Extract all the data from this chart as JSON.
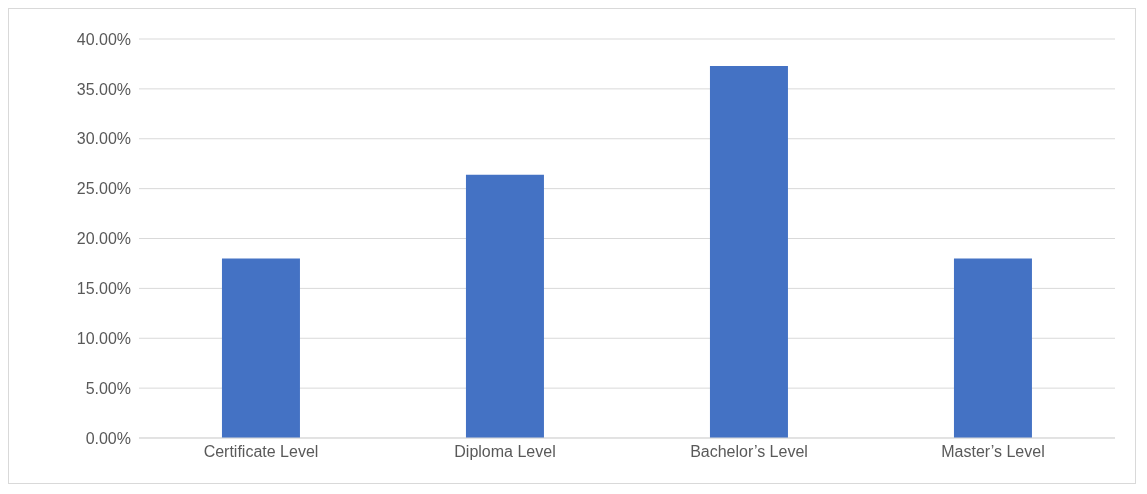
{
  "chart_data": {
    "type": "bar",
    "categories": [
      "Certificate Level",
      "Diploma Level",
      "Bachelor’s Level",
      "Master’s Level"
    ],
    "values": [
      18.0,
      26.4,
      37.3,
      18.0
    ],
    "color": "#4472c4",
    "ylim": [
      0,
      40
    ],
    "yticks": [
      {
        "value": 0,
        "label": "0.00%"
      },
      {
        "value": 5,
        "label": "5.00%"
      },
      {
        "value": 10,
        "label": "10.00%"
      },
      {
        "value": 15,
        "label": "15.00%"
      },
      {
        "value": 20,
        "label": "20.00%"
      },
      {
        "value": 25,
        "label": "25.00%"
      },
      {
        "value": 30,
        "label": "30.00%"
      },
      {
        "value": 35,
        "label": "35.00%"
      },
      {
        "value": 40,
        "label": "40.00%"
      }
    ],
    "grid": "y"
  }
}
